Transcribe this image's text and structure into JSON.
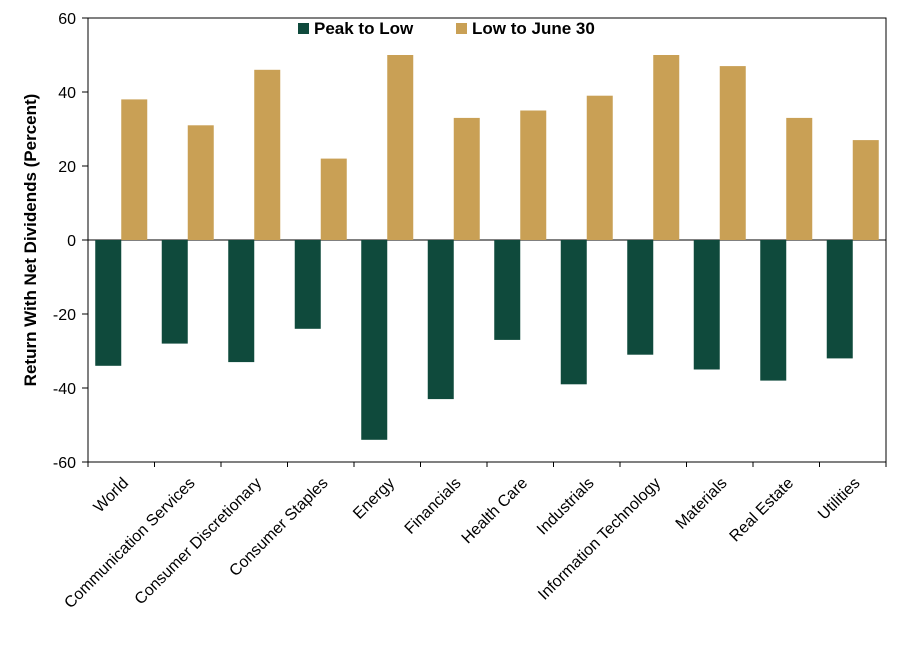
{
  "chart_data": {
    "type": "bar",
    "title": "",
    "xlabel": "",
    "ylabel": "Return With Net Dividends (Percent)",
    "ylim": [
      -60,
      60
    ],
    "yticks": [
      60,
      40,
      20,
      0,
      -20,
      -40,
      -60
    ],
    "grid": false,
    "legend_position": "top-center",
    "categories": [
      "World",
      "Communication Services",
      "Consumer Discretionary",
      "Consumer Staples",
      "Energy",
      "Financials",
      "Health Care",
      "Industrials",
      "Information Technology",
      "Materials",
      "Real Estate",
      "Utilities"
    ],
    "series": [
      {
        "name": "Peak to Low",
        "color": "#0f4a3c",
        "values": [
          -34,
          -28,
          -33,
          -24,
          -54,
          -43,
          -27,
          -39,
          -31,
          -35,
          -38,
          -32
        ]
      },
      {
        "name": "Low to June 30",
        "color": "#c9a055",
        "values": [
          38,
          31,
          46,
          22,
          50,
          33,
          35,
          39,
          50,
          47,
          33,
          27
        ]
      }
    ]
  }
}
